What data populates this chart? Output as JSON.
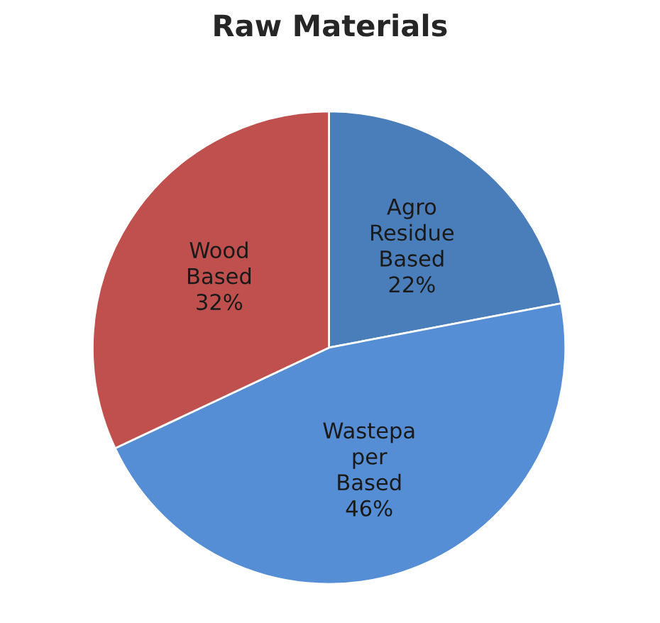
{
  "chart_data": {
    "type": "pie",
    "title": "Raw Materials",
    "categories": [
      "Agro\nResidue\nBased",
      "Wastepa\nper\nBased",
      "Wood\nBased"
    ],
    "values": [
      22,
      46,
      32
    ],
    "value_labels": [
      "22%",
      "46%",
      "32%"
    ],
    "colors": [
      "#4a7ebb",
      "#558ed5",
      "#c0504d"
    ]
  }
}
